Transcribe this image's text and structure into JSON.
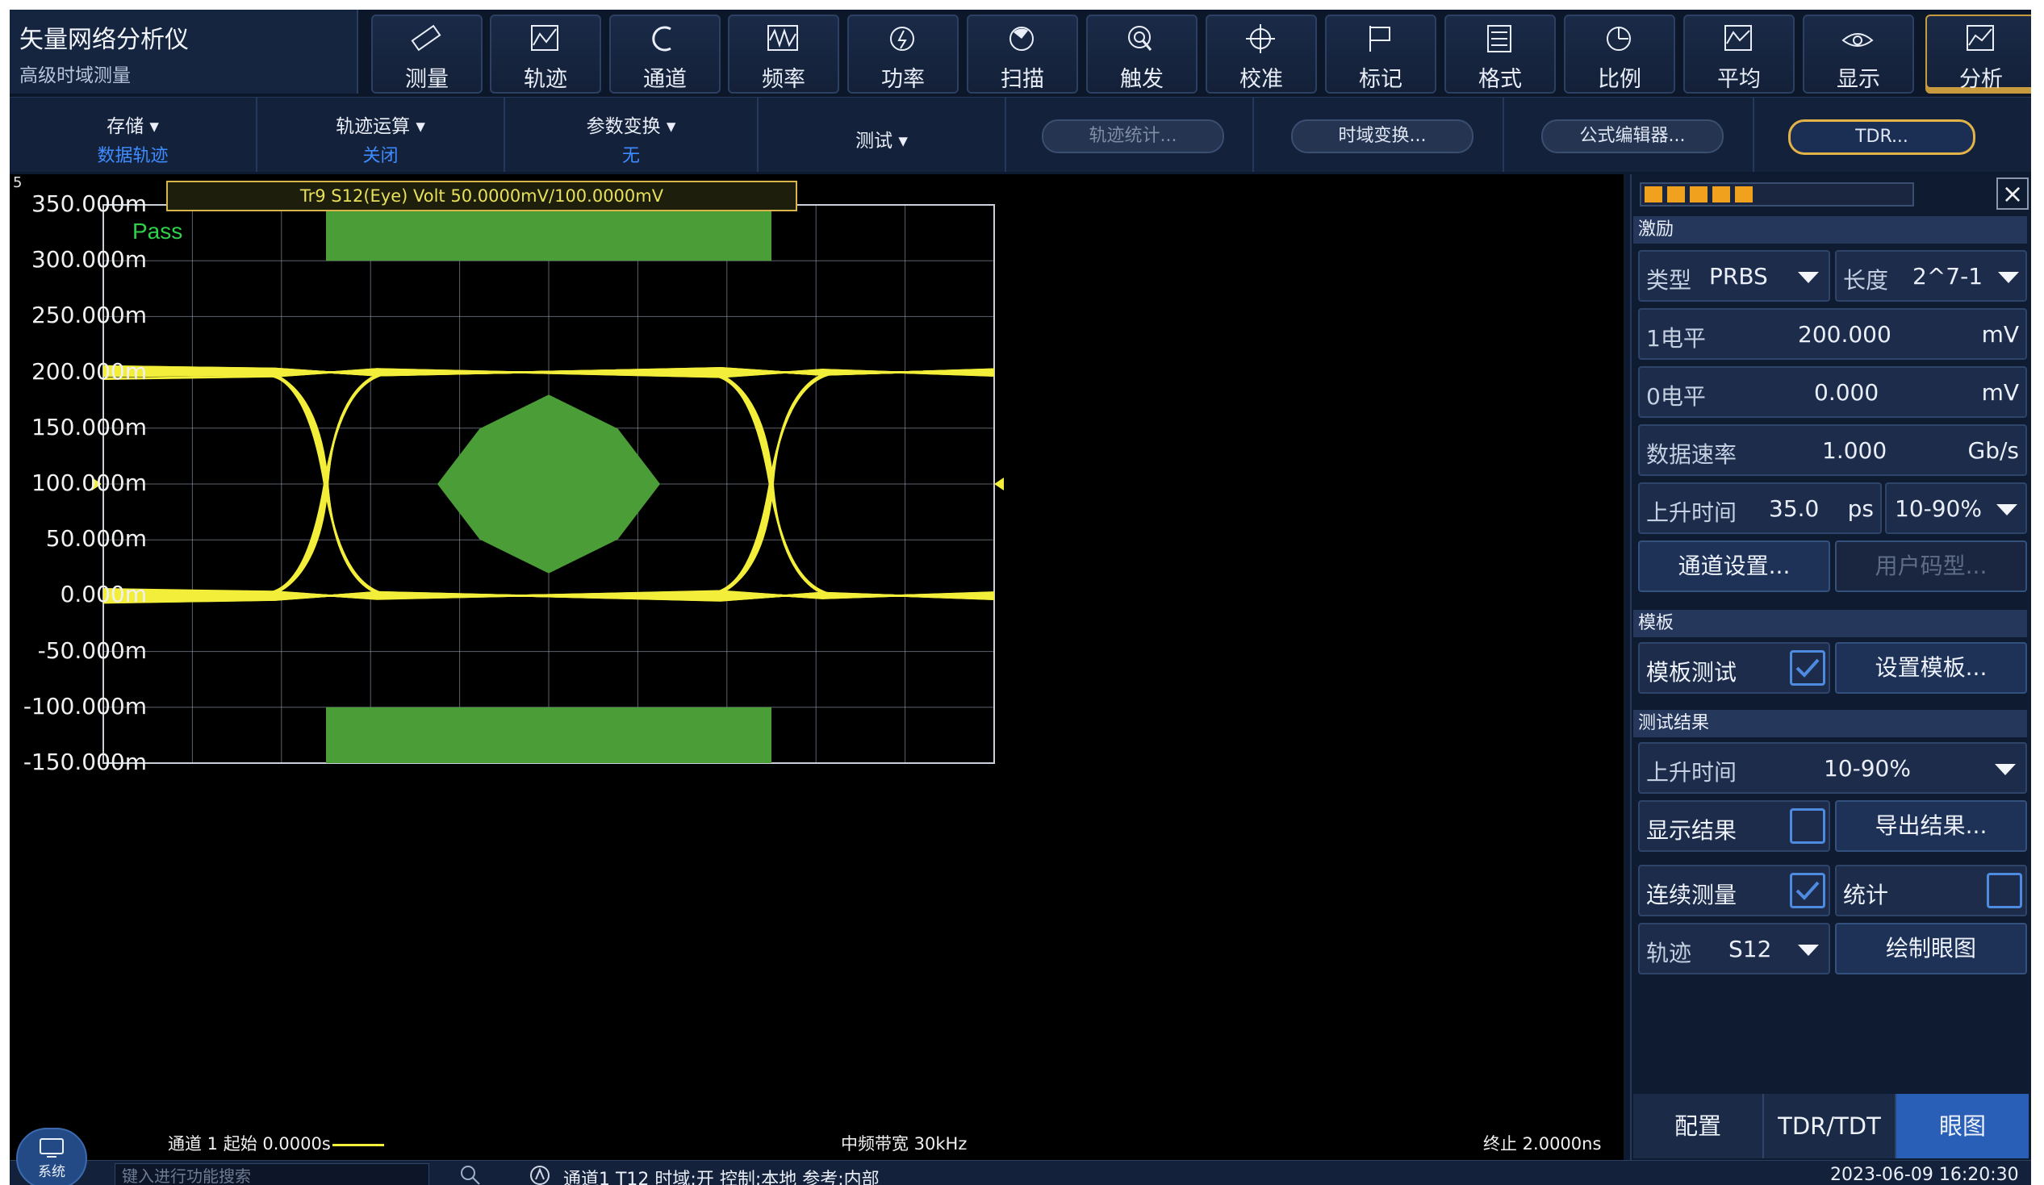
{
  "app": {
    "title": "矢量网络分析仪",
    "subtitle": "高级时域测量"
  },
  "toolbar": [
    {
      "label": "测量",
      "icon": "ruler-icon"
    },
    {
      "label": "轨迹",
      "icon": "trace-icon"
    },
    {
      "label": "通道",
      "icon": "channel-icon"
    },
    {
      "label": "频率",
      "icon": "frequency-icon"
    },
    {
      "label": "功率",
      "icon": "power-icon"
    },
    {
      "label": "扫描",
      "icon": "sweep-icon"
    },
    {
      "label": "触发",
      "icon": "trigger-icon"
    },
    {
      "label": "校准",
      "icon": "calibration-icon"
    },
    {
      "label": "标记",
      "icon": "marker-flag-icon"
    },
    {
      "label": "格式",
      "icon": "format-icon"
    },
    {
      "label": "比例",
      "icon": "scale-icon"
    },
    {
      "label": "平均",
      "icon": "average-icon"
    },
    {
      "label": "显示",
      "icon": "display-eye-icon"
    },
    {
      "label": "分析",
      "icon": "analysis-chart-icon",
      "active": true
    }
  ],
  "menubar": {
    "storage": {
      "label": "存储",
      "value": "数据轨迹"
    },
    "trace_math": {
      "label": "轨迹运算",
      "value": "关闭"
    },
    "param_conv": {
      "label": "参数变换",
      "value": "无"
    },
    "test": {
      "label": "测试"
    },
    "trace_stats": "轨迹统计...",
    "time_domain": "时域变换...",
    "equation_editor": "公式编辑器...",
    "tdr": "TDR..."
  },
  "plot": {
    "window_number": "5",
    "trace_label": "Tr9 S12(Eye) Volt 50.0000mV/100.0000mV",
    "pass_text": "Pass",
    "yticks": [
      "350.000m",
      "300.000m",
      "250.000m",
      "200.000m",
      "150.000m",
      "100.000m",
      "50.000m",
      "0.000m",
      "-50.000m",
      "-100.000m",
      "-150.000m"
    ],
    "footer_left": "通道 1 起始 0.0000s",
    "footer_center": "中频带宽 30kHz",
    "footer_right": "终止 2.0000ns"
  },
  "chart_data": {
    "type": "eye diagram",
    "title": "Tr9 S12(Eye) Volt 50.0000mV/100.0000mV",
    "ylim": [
      -0.15,
      0.35
    ],
    "x_range_s": [
      0,
      2e-09
    ],
    "high_level_v": 0.2,
    "low_level_v": 0.0,
    "reference_level_v": 0.1,
    "eye_crossings_ns": [
      0.5,
      1.5
    ],
    "mask_center": {
      "x_ns": [
        0.75,
        1.25
      ],
      "y_v": [
        0.02,
        0.18
      ]
    },
    "mask_top": {
      "x_ns": [
        0.5,
        1.5
      ],
      "y_v": [
        0.3,
        0.35
      ]
    },
    "mask_bottom": {
      "x_ns": [
        0.5,
        1.5
      ],
      "y_v": [
        -0.15,
        -0.1
      ]
    },
    "result": "Pass",
    "colors": {
      "trace": "#f2ee3a",
      "mask": "#4b9e37",
      "grid": "#9aa4b4"
    }
  },
  "panel": {
    "section_stimulus": "激励",
    "type_label": "类型",
    "type_value": "PRBS",
    "length_label": "长度",
    "length_value": "2^7-1",
    "level1_label": "1电平",
    "level1_value": "200.000",
    "level1_unit": "mV",
    "level0_label": "0电平",
    "level0_value": "0.000",
    "level0_unit": "mV",
    "rate_label": "数据速率",
    "rate_value": "1.000",
    "rate_unit": "Gb/s",
    "rise_label": "上升时间",
    "rise_value": "35.0",
    "rise_unit": "ps",
    "rise_mode": "10-90%",
    "channel_setup": "通道设置...",
    "user_pattern": "用户码型...",
    "section_mask": "模板",
    "mask_test": "模板测试",
    "set_mask": "设置模板...",
    "section_results": "测试结果",
    "result_rise_label": "上升时间",
    "result_rise_value": "10-90%",
    "show_results": "显示结果",
    "export_results": "导出结果...",
    "continuous": "连续测量",
    "statistics": "统计",
    "trace_label": "轨迹",
    "trace_value": "S12",
    "draw_eye": "绘制眼图",
    "tabs": [
      "配置",
      "TDR/TDT",
      "眼图"
    ]
  },
  "status": {
    "system": "系统",
    "search_placeholder": "键入进行功能搜索",
    "info": "通道1 T12 时域:开 控制:本地 参考:内部",
    "datetime": "2023-06-09 16:20:30"
  }
}
